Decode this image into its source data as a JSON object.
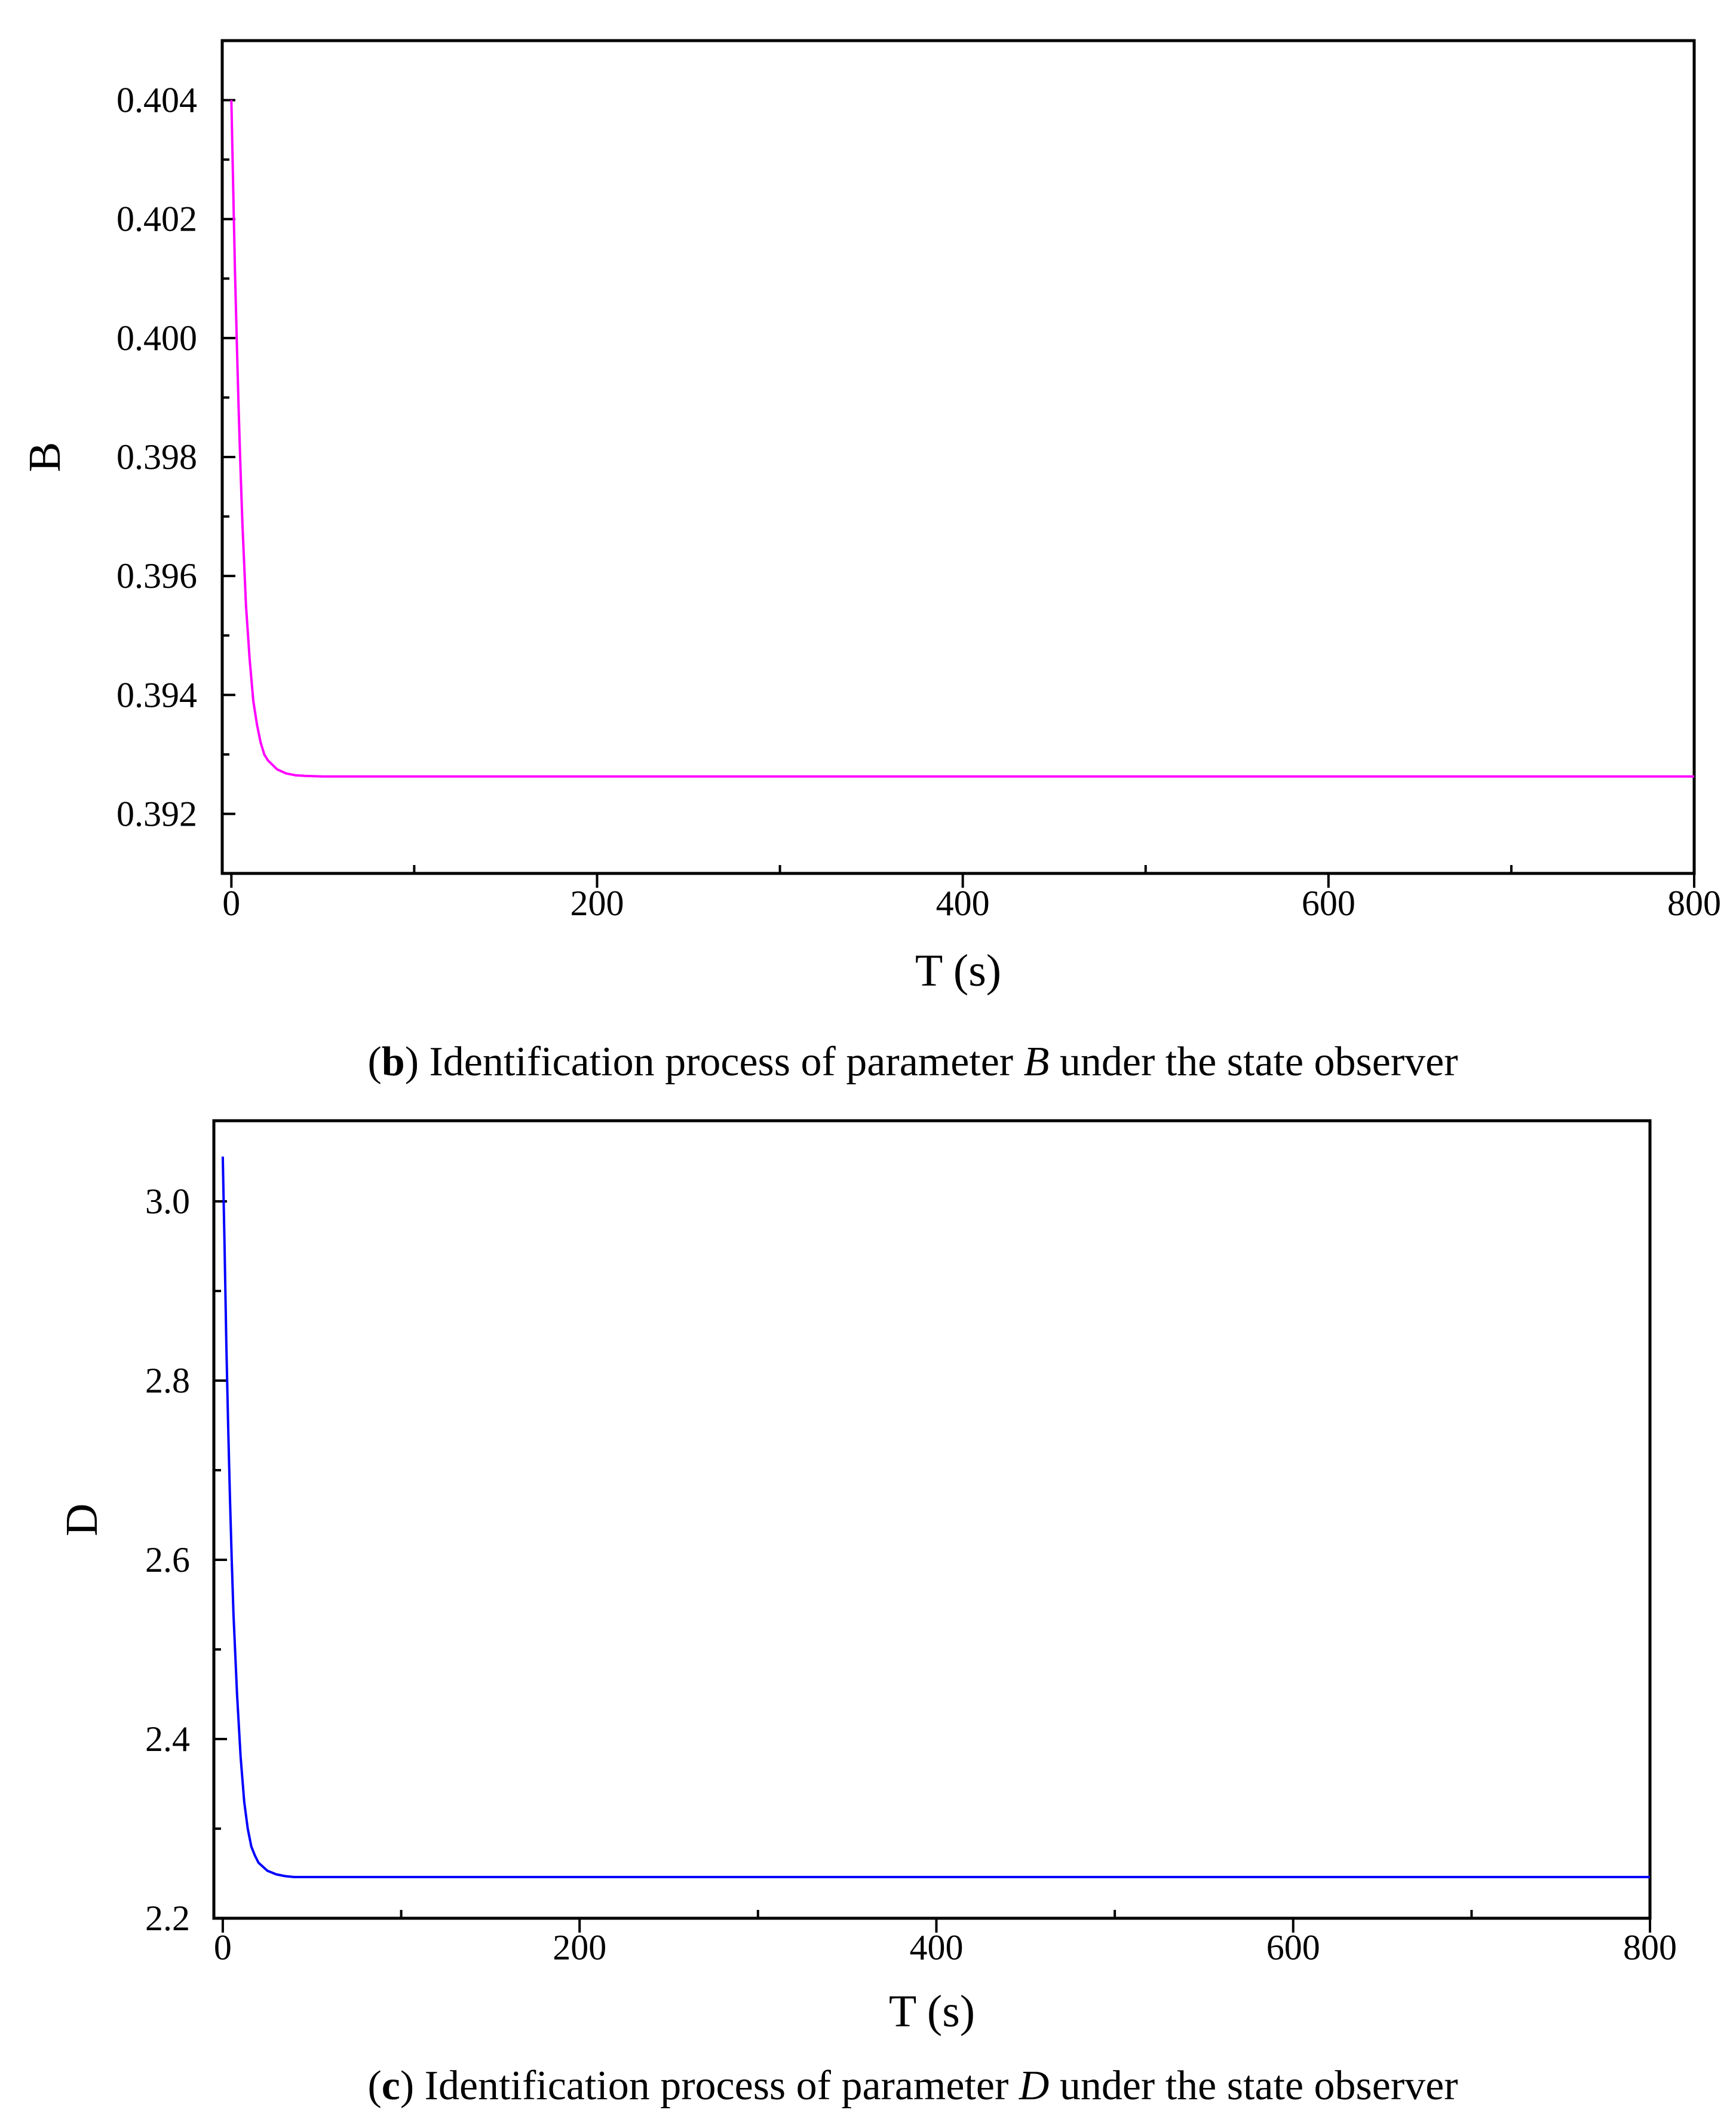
{
  "chart_data": [
    {
      "type": "line",
      "panel": "b",
      "xlabel": "T (s)",
      "ylabel": "B",
      "xlim": [
        -5,
        800
      ],
      "ylim": [
        0.391,
        0.405
      ],
      "x_ticks": [
        "0",
        "200",
        "400",
        "600",
        "800"
      ],
      "y_ticks": [
        "0.392",
        "0.394",
        "0.396",
        "0.398",
        "0.400",
        "0.402",
        "0.404"
      ],
      "x_tick_values": [
        0,
        200,
        400,
        600,
        800
      ],
      "y_tick_values": [
        0.392,
        0.394,
        0.396,
        0.398,
        0.4,
        0.402,
        0.404
      ],
      "grid": false,
      "color": "#ff00ff",
      "series": [
        {
          "x": [
            0,
            1,
            2,
            3,
            4,
            5,
            6,
            8,
            10,
            12,
            14,
            16,
            18,
            20,
            25,
            30,
            35,
            40,
            50,
            60,
            100,
            200,
            300,
            400,
            500,
            600,
            700,
            800
          ],
          "y": [
            0.404,
            0.4025,
            0.4011,
            0.3999,
            0.3988,
            0.3978,
            0.3969,
            0.3955,
            0.3946,
            0.3939,
            0.3935,
            0.3932,
            0.393,
            0.3929,
            0.39275,
            0.39268,
            0.39265,
            0.39264,
            0.39263,
            0.39263,
            0.39263,
            0.39263,
            0.39263,
            0.39263,
            0.39263,
            0.39263,
            0.39263,
            0.39263
          ]
        }
      ],
      "caption": {
        "open": "(",
        "letter": "b",
        "close_text": ") Identification process of parameter ",
        "symbol": "B",
        "tail": " under the state observer"
      }
    },
    {
      "type": "line",
      "panel": "c",
      "xlabel": "T (s)",
      "ylabel": "D",
      "xlim": [
        -5,
        800
      ],
      "ylim": [
        2.2,
        3.09
      ],
      "x_ticks": [
        "0",
        "200",
        "400",
        "600",
        "800"
      ],
      "y_ticks": [
        "2.2",
        "2.4",
        "2.6",
        "2.8",
        "3.0"
      ],
      "x_tick_values": [
        0,
        200,
        400,
        600,
        800
      ],
      "y_tick_values": [
        2.2,
        2.4,
        2.6,
        2.8,
        3.0
      ],
      "grid": false,
      "color": "#0000ff",
      "series": [
        {
          "x": [
            0,
            1,
            2,
            3,
            4,
            5,
            6,
            8,
            10,
            12,
            14,
            16,
            18,
            20,
            25,
            30,
            35,
            40,
            50,
            60,
            100,
            200,
            300,
            400,
            500,
            600,
            700,
            800
          ],
          "y": [
            3.05,
            2.95,
            2.84,
            2.75,
            2.67,
            2.6,
            2.54,
            2.45,
            2.38,
            2.33,
            2.3,
            2.28,
            2.27,
            2.262,
            2.253,
            2.249,
            2.247,
            2.246,
            2.246,
            2.246,
            2.246,
            2.246,
            2.246,
            2.246,
            2.246,
            2.246,
            2.246,
            2.246
          ]
        }
      ],
      "caption": {
        "open": "(",
        "letter": "c",
        "close_text": ") Identification process of parameter ",
        "symbol": "D",
        "tail": " under the state observer"
      }
    }
  ]
}
